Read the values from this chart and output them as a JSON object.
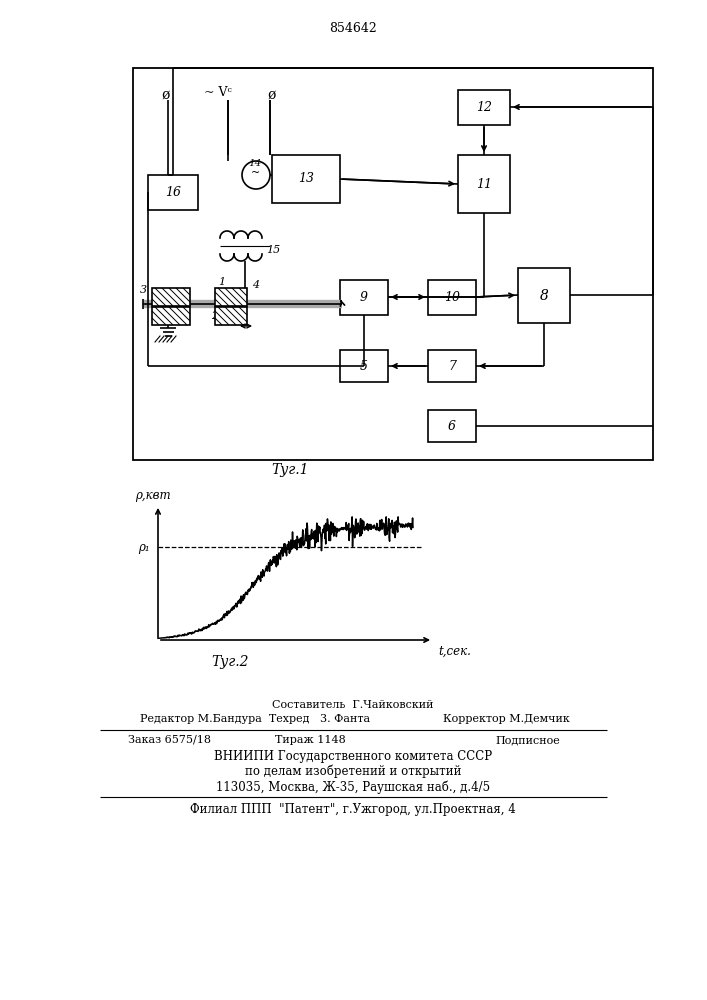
{
  "patent_number": "854642",
  "fig1_label": "Τуг.1",
  "fig2_label": "Τуг.2",
  "ylabel": "ρ,квт",
  "xlabel": "t,сек.",
  "p1_label": "ρ₁",
  "line_color": "black",
  "bg_color": "white",
  "footer_line1": "Составитель  Г.Чайковский",
  "footer_line2_left": "Редактор М.Бандура  Техред   3. Фанта",
  "footer_line2_right": "Корректор М.Демчик",
  "footer_line3_a": "Заказ 6575/18",
  "footer_line3_b": "Тираж 1148",
  "footer_line3_c": "Подписное",
  "footer_line4": "ВНИИПИ Государственного комитета СССР",
  "footer_line5": "по делам изобретений и открытий",
  "footer_line6": "113035, Москва, Ж-35, Раушская наб., д.4/5",
  "footer_line7": "Филиал ППП  \"Патент\", г.Ужгород, ул.Проектная, 4"
}
